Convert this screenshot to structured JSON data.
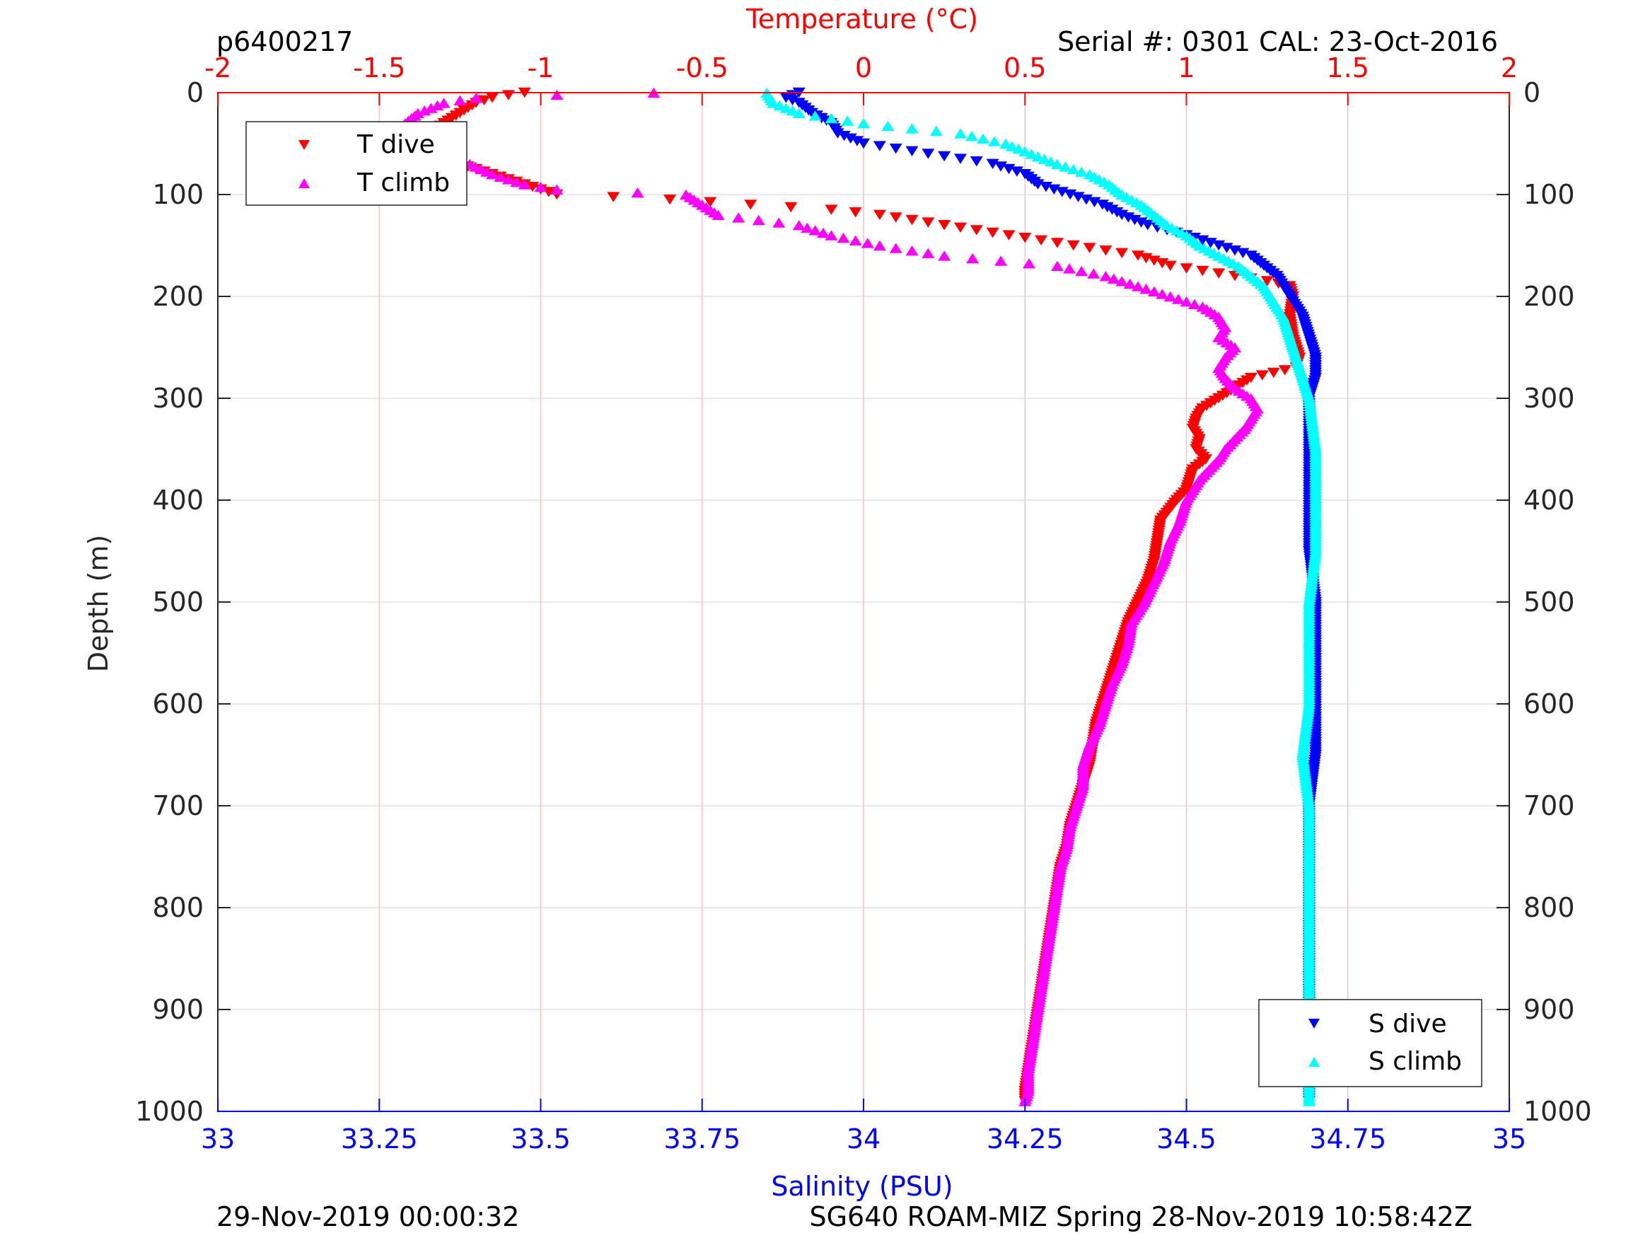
{
  "chart_data": {
    "type": "scatter",
    "top_left_label": "p6400217",
    "top_right_label": "Serial #: 0301  CAL: 23-Oct-2016",
    "footer_left": "29-Nov-2019 00:00:32",
    "footer_right": "SG640 ROAM-MIZ Spring 28-Nov-2019 10:58:42Z",
    "ylabel": "Depth (m)",
    "ylim": [
      0,
      1000
    ],
    "yreversed": true,
    "y_ticks": [
      "0",
      "100",
      "200",
      "300",
      "400",
      "500",
      "600",
      "700",
      "800",
      "900",
      "1000"
    ],
    "x_bottom": {
      "label": "Salinity (PSU)",
      "lim": [
        33,
        35
      ],
      "ticks": [
        "33",
        "33.25",
        "33.5",
        "33.75",
        "34",
        "34.25",
        "34.5",
        "34.75",
        "35"
      ],
      "color": "#0000ff"
    },
    "x_top": {
      "label": "Temperature (°C)",
      "lim": [
        -2,
        2
      ],
      "ticks": [
        "-2",
        "-1.5",
        "-1",
        "-0.5",
        "0",
        "0.5",
        "1",
        "1.5",
        "2"
      ],
      "color": "#ff0000"
    },
    "grid": true,
    "legend_temperature": {
      "placement": "top-left",
      "entries": [
        "T dive",
        "T climb"
      ]
    },
    "legend_salinity": {
      "placement": "bottom-right",
      "entries": [
        "S dive",
        "S climb"
      ]
    },
    "series": [
      {
        "name": "T dive",
        "axis": "temperature",
        "marker": "triangle-down",
        "color": "#ff0000",
        "points": [
          [
            0,
            -1.05
          ],
          [
            5,
            -1.15
          ],
          [
            10,
            -1.2
          ],
          [
            20,
            -1.25
          ],
          [
            30,
            -1.3
          ],
          [
            40,
            -1.35
          ],
          [
            50,
            -1.3
          ],
          [
            60,
            -1.35
          ],
          [
            70,
            -1.25
          ],
          [
            80,
            -1.15
          ],
          [
            90,
            -1.05
          ],
          [
            100,
            -0.95
          ],
          [
            105,
            -0.6
          ],
          [
            110,
            -0.35
          ],
          [
            115,
            -0.1
          ],
          [
            120,
            0.05
          ],
          [
            125,
            0.15
          ],
          [
            130,
            0.25
          ],
          [
            135,
            0.35
          ],
          [
            140,
            0.45
          ],
          [
            145,
            0.55
          ],
          [
            150,
            0.65
          ],
          [
            155,
            0.75
          ],
          [
            160,
            0.85
          ],
          [
            165,
            0.9
          ],
          [
            170,
            0.95
          ],
          [
            175,
            1.05
          ],
          [
            180,
            1.15
          ],
          [
            185,
            1.25
          ],
          [
            190,
            1.32
          ],
          [
            200,
            1.33
          ],
          [
            220,
            1.32
          ],
          [
            240,
            1.33
          ],
          [
            260,
            1.35
          ],
          [
            270,
            1.34
          ],
          [
            280,
            1.2
          ],
          [
            290,
            1.15
          ],
          [
            300,
            1.1
          ],
          [
            310,
            1.05
          ],
          [
            320,
            1.03
          ],
          [
            330,
            1.02
          ],
          [
            340,
            1.04
          ],
          [
            350,
            1.03
          ],
          [
            360,
            1.06
          ],
          [
            370,
            1.02
          ],
          [
            380,
            1.01
          ],
          [
            390,
            1.0
          ],
          [
            400,
            0.97
          ],
          [
            420,
            0.92
          ],
          [
            440,
            0.91
          ],
          [
            460,
            0.9
          ],
          [
            480,
            0.88
          ],
          [
            500,
            0.85
          ],
          [
            520,
            0.82
          ],
          [
            540,
            0.8
          ],
          [
            560,
            0.78
          ],
          [
            580,
            0.76
          ],
          [
            600,
            0.74
          ],
          [
            620,
            0.72
          ],
          [
            640,
            0.71
          ],
          [
            660,
            0.7
          ],
          [
            680,
            0.68
          ],
          [
            700,
            0.66
          ],
          [
            720,
            0.64
          ],
          [
            740,
            0.63
          ],
          [
            760,
            0.61
          ],
          [
            780,
            0.6
          ],
          [
            800,
            0.59
          ],
          [
            820,
            0.58
          ],
          [
            840,
            0.57
          ],
          [
            860,
            0.56
          ],
          [
            880,
            0.55
          ],
          [
            900,
            0.54
          ],
          [
            920,
            0.53
          ],
          [
            940,
            0.52
          ],
          [
            960,
            0.51
          ],
          [
            980,
            0.5
          ],
          [
            990,
            0.5
          ]
        ]
      },
      {
        "name": "T climb",
        "axis": "temperature",
        "marker": "triangle-up",
        "color": "#ff00ff",
        "points": [
          [
            0,
            -0.65
          ],
          [
            2,
            -0.95
          ],
          [
            5,
            -1.2
          ],
          [
            10,
            -1.3
          ],
          [
            20,
            -1.38
          ],
          [
            30,
            -1.42
          ],
          [
            40,
            -1.45
          ],
          [
            50,
            -1.4
          ],
          [
            60,
            -1.3
          ],
          [
            70,
            -1.22
          ],
          [
            80,
            -1.15
          ],
          [
            90,
            -1.05
          ],
          [
            95,
            -0.95
          ],
          [
            98,
            -0.7
          ],
          [
            100,
            -0.55
          ],
          [
            110,
            -0.5
          ],
          [
            120,
            -0.45
          ],
          [
            130,
            -0.2
          ],
          [
            140,
            -0.1
          ],
          [
            150,
            0.05
          ],
          [
            160,
            0.25
          ],
          [
            170,
            0.6
          ],
          [
            180,
            0.75
          ],
          [
            190,
            0.85
          ],
          [
            200,
            0.95
          ],
          [
            210,
            1.05
          ],
          [
            220,
            1.1
          ],
          [
            230,
            1.12
          ],
          [
            240,
            1.1
          ],
          [
            250,
            1.15
          ],
          [
            260,
            1.12
          ],
          [
            270,
            1.1
          ],
          [
            280,
            1.12
          ],
          [
            290,
            1.15
          ],
          [
            300,
            1.2
          ],
          [
            310,
            1.22
          ],
          [
            320,
            1.2
          ],
          [
            330,
            1.18
          ],
          [
            340,
            1.15
          ],
          [
            350,
            1.12
          ],
          [
            360,
            1.1
          ],
          [
            370,
            1.07
          ],
          [
            380,
            1.04
          ],
          [
            390,
            1.02
          ],
          [
            400,
            1.0
          ],
          [
            420,
            0.98
          ],
          [
            440,
            0.95
          ],
          [
            460,
            0.93
          ],
          [
            480,
            0.9
          ],
          [
            500,
            0.87
          ],
          [
            520,
            0.83
          ],
          [
            540,
            0.82
          ],
          [
            560,
            0.8
          ],
          [
            580,
            0.77
          ],
          [
            600,
            0.75
          ],
          [
            620,
            0.73
          ],
          [
            640,
            0.7
          ],
          [
            660,
            0.68
          ],
          [
            680,
            0.68
          ],
          [
            700,
            0.66
          ],
          [
            720,
            0.64
          ],
          [
            740,
            0.63
          ],
          [
            760,
            0.61
          ],
          [
            780,
            0.6
          ],
          [
            800,
            0.59
          ],
          [
            820,
            0.58
          ],
          [
            840,
            0.57
          ],
          [
            860,
            0.56
          ],
          [
            880,
            0.55
          ],
          [
            900,
            0.54
          ],
          [
            920,
            0.53
          ],
          [
            940,
            0.52
          ],
          [
            960,
            0.51
          ],
          [
            980,
            0.51
          ],
          [
            990,
            0.5
          ]
        ]
      },
      {
        "name": "S dive",
        "axis": "salinity",
        "marker": "triangle-down",
        "color": "#0000ff",
        "points": [
          [
            0,
            33.9
          ],
          [
            5,
            33.88
          ],
          [
            10,
            33.9
          ],
          [
            20,
            33.92
          ],
          [
            30,
            33.95
          ],
          [
            40,
            33.96
          ],
          [
            50,
            34.0
          ],
          [
            60,
            34.1
          ],
          [
            70,
            34.2
          ],
          [
            80,
            34.25
          ],
          [
            90,
            34.27
          ],
          [
            100,
            34.32
          ],
          [
            110,
            34.37
          ],
          [
            120,
            34.4
          ],
          [
            130,
            34.44
          ],
          [
            140,
            34.5
          ],
          [
            150,
            34.55
          ],
          [
            160,
            34.6
          ],
          [
            170,
            34.62
          ],
          [
            180,
            34.64
          ],
          [
            190,
            34.65
          ],
          [
            200,
            34.66
          ],
          [
            210,
            34.67
          ],
          [
            220,
            34.68
          ],
          [
            240,
            34.69
          ],
          [
            260,
            34.7
          ],
          [
            280,
            34.7
          ],
          [
            300,
            34.69
          ],
          [
            350,
            34.69
          ],
          [
            400,
            34.69
          ],
          [
            450,
            34.69
          ],
          [
            500,
            34.7
          ],
          [
            550,
            34.7
          ],
          [
            600,
            34.7
          ],
          [
            650,
            34.7
          ],
          [
            700,
            34.69
          ],
          [
            750,
            34.69
          ],
          [
            800,
            34.69
          ],
          [
            850,
            34.69
          ],
          [
            900,
            34.69
          ],
          [
            950,
            34.69
          ],
          [
            990,
            34.69
          ]
        ]
      },
      {
        "name": "S climb",
        "axis": "salinity",
        "marker": "triangle-up",
        "color": "#00ffff",
        "points": [
          [
            0,
            33.85
          ],
          [
            10,
            33.86
          ],
          [
            20,
            33.9
          ],
          [
            30,
            34.0
          ],
          [
            40,
            34.15
          ],
          [
            50,
            34.22
          ],
          [
            60,
            34.26
          ],
          [
            70,
            34.3
          ],
          [
            80,
            34.35
          ],
          [
            90,
            34.38
          ],
          [
            100,
            34.4
          ],
          [
            110,
            34.43
          ],
          [
            120,
            34.45
          ],
          [
            130,
            34.47
          ],
          [
            140,
            34.5
          ],
          [
            150,
            34.52
          ],
          [
            160,
            34.55
          ],
          [
            170,
            34.58
          ],
          [
            180,
            34.6
          ],
          [
            190,
            34.62
          ],
          [
            200,
            34.63
          ],
          [
            220,
            34.65
          ],
          [
            240,
            34.66
          ],
          [
            260,
            34.67
          ],
          [
            280,
            34.68
          ],
          [
            300,
            34.69
          ],
          [
            350,
            34.7
          ],
          [
            400,
            34.7
          ],
          [
            450,
            34.7
          ],
          [
            500,
            34.69
          ],
          [
            550,
            34.69
          ],
          [
            600,
            34.69
          ],
          [
            650,
            34.68
          ],
          [
            700,
            34.69
          ],
          [
            750,
            34.69
          ],
          [
            800,
            34.69
          ],
          [
            850,
            34.69
          ],
          [
            900,
            34.69
          ],
          [
            950,
            34.69
          ],
          [
            990,
            34.69
          ]
        ]
      }
    ]
  }
}
